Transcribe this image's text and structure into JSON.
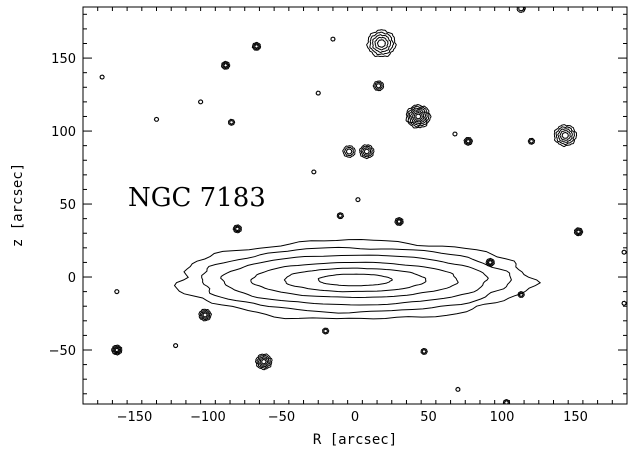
{
  "chart_data": {
    "type": "contour",
    "title": "NGC 7183",
    "xlabel": "R [arcsec]",
    "ylabel": "z [arcsec]",
    "xlim": [
      -185,
      185
    ],
    "ylim": [
      -87,
      185
    ],
    "xticks": [
      -150,
      -100,
      -50,
      0,
      50,
      100,
      150
    ],
    "yticks": [
      -50,
      0,
      50,
      100,
      150
    ],
    "xtick_labels": [
      "−150",
      "−100",
      "−50",
      "0",
      "50",
      "100",
      "150"
    ],
    "ytick_labels": [
      "−50",
      "0",
      "50",
      "100",
      "150"
    ],
    "galaxy": {
      "center": [
        0,
        -2
      ],
      "isophotes": [
        {
          "a": 120,
          "b": 27
        },
        {
          "a": 105,
          "b": 22
        },
        {
          "a": 90,
          "b": 17
        },
        {
          "a": 70,
          "b": 12
        },
        {
          "a": 48,
          "b": 8
        },
        {
          "a": 25,
          "b": 4
        }
      ]
    },
    "sources": [
      {
        "x": 18,
        "y": 160,
        "r": 14,
        "levels": 5
      },
      {
        "x": 43,
        "y": 110,
        "r": 12,
        "levels": 7
      },
      {
        "x": 143,
        "y": 97,
        "r": 11,
        "levels": 5
      },
      {
        "x": 8,
        "y": 86,
        "r": 7,
        "levels": 4
      },
      {
        "x": -4,
        "y": 86,
        "r": 6,
        "levels": 3
      },
      {
        "x": 16,
        "y": 131,
        "r": 5,
        "levels": 3
      },
      {
        "x": -67,
        "y": 158,
        "r": 4,
        "levels": 3
      },
      {
        "x": -88,
        "y": 145,
        "r": 4,
        "levels": 3
      },
      {
        "x": -84,
        "y": 106,
        "r": 3,
        "levels": 2
      },
      {
        "x": 77,
        "y": 93,
        "r": 4,
        "levels": 3
      },
      {
        "x": 120,
        "y": 93,
        "r": 3,
        "levels": 2
      },
      {
        "x": -80,
        "y": 33,
        "r": 4,
        "levels": 3
      },
      {
        "x": 30,
        "y": 38,
        "r": 4,
        "levels": 3
      },
      {
        "x": -10,
        "y": 42,
        "r": 3,
        "levels": 2
      },
      {
        "x": 152,
        "y": 31,
        "r": 4,
        "levels": 3
      },
      {
        "x": -102,
        "y": -26,
        "r": 6,
        "levels": 4
      },
      {
        "x": -62,
        "y": -58,
        "r": 8,
        "levels": 5
      },
      {
        "x": -162,
        "y": -50,
        "r": 5,
        "levels": 4
      },
      {
        "x": 92,
        "y": 10,
        "r": 4,
        "levels": 3
      },
      {
        "x": 113,
        "y": -12,
        "r": 3,
        "levels": 2
      },
      {
        "x": 47,
        "y": -51,
        "r": 3,
        "levels": 2
      },
      {
        "x": -20,
        "y": -37,
        "r": 3,
        "levels": 2
      },
      {
        "x": -172,
        "y": 137,
        "r": 2,
        "levels": 1
      },
      {
        "x": -28,
        "y": 72,
        "r": 2,
        "levels": 1
      },
      {
        "x": -105,
        "y": 120,
        "r": 2,
        "levels": 1
      },
      {
        "x": -135,
        "y": 108,
        "r": 2,
        "levels": 1
      },
      {
        "x": -15,
        "y": 163,
        "r": 2,
        "levels": 1
      },
      {
        "x": -25,
        "y": 126,
        "r": 2,
        "levels": 1
      },
      {
        "x": 2,
        "y": 53,
        "r": 2,
        "levels": 1
      },
      {
        "x": -162,
        "y": -10,
        "r": 2,
        "levels": 1
      },
      {
        "x": -122,
        "y": -47,
        "r": 2,
        "levels": 1
      },
      {
        "x": 70,
        "y": -77,
        "r": 2,
        "levels": 1
      },
      {
        "x": 103,
        "y": -86,
        "r": 3,
        "levels": 2
      },
      {
        "x": 113,
        "y": 184,
        "r": 4,
        "levels": 2
      },
      {
        "x": 68,
        "y": 98,
        "r": 2,
        "levels": 1
      },
      {
        "x": 183,
        "y": 17,
        "r": 2,
        "levels": 1
      },
      {
        "x": 183,
        "y": -18,
        "r": 2,
        "levels": 1
      }
    ]
  }
}
